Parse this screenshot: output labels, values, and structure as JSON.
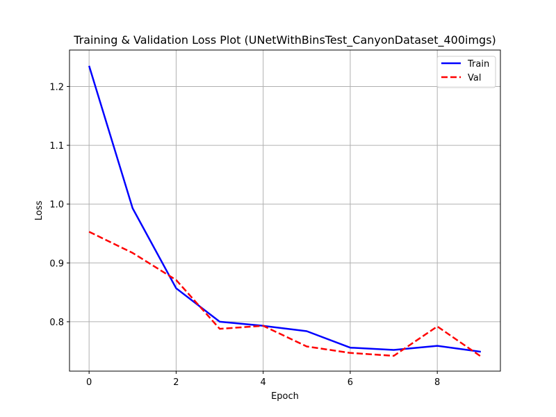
{
  "chart_data": {
    "type": "line",
    "title": "Training & Validation Loss Plot (UNetWithBinsTest_CanyonDataset_400imgs)",
    "xlabel": "Epoch",
    "ylabel": "Loss",
    "x": [
      0,
      1,
      2,
      3,
      4,
      5,
      6,
      7,
      8,
      9
    ],
    "xlim": [
      -0.45,
      9.45
    ],
    "ylim": [
      0.716,
      1.262
    ],
    "xticks": [
      0,
      2,
      4,
      6,
      8
    ],
    "yticks": [
      0.8,
      0.9,
      1.0,
      1.1,
      1.2
    ],
    "xtick_labels": [
      "0",
      "2",
      "4",
      "6",
      "8"
    ],
    "ytick_labels": [
      "0.8",
      "0.9",
      "1.0",
      "1.1",
      "1.2"
    ],
    "grid": true,
    "legend_position": "top-right",
    "series": [
      {
        "name": "Train",
        "color": "#0000ff",
        "style": "solid",
        "values": [
          1.235,
          0.993,
          0.857,
          0.8,
          0.793,
          0.784,
          0.756,
          0.752,
          0.759,
          0.749
        ]
      },
      {
        "name": "Val",
        "color": "#ff0000",
        "style": "dashed",
        "values": [
          0.953,
          0.917,
          0.871,
          0.788,
          0.793,
          0.758,
          0.747,
          0.742,
          0.792,
          0.741
        ]
      }
    ]
  }
}
